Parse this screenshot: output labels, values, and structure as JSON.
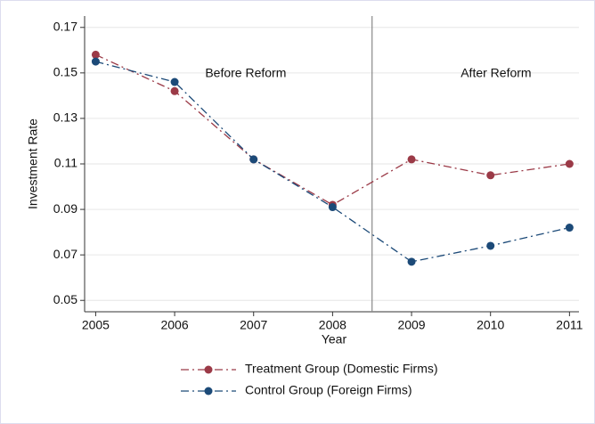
{
  "chart_data": {
    "type": "line",
    "x_label": "Year",
    "y_label": "Investment Rate",
    "x": [
      2005,
      2006,
      2007,
      2008,
      2009,
      2010,
      2011
    ],
    "series": [
      {
        "name": "Treatment Group (Domestic Firms)",
        "color": "#9b3a47",
        "values": [
          0.158,
          0.142,
          0.112,
          0.092,
          0.112,
          0.105,
          0.11
        ]
      },
      {
        "name": "Control Group (Foreign Firms)",
        "color": "#1c4a78",
        "values": [
          0.155,
          0.146,
          0.112,
          0.091,
          0.067,
          0.074,
          0.082
        ]
      }
    ],
    "xlim": [
      2004.86,
      2011.12
    ],
    "ylim": [
      0.045,
      0.175
    ],
    "xticks": [
      2005,
      2006,
      2007,
      2008,
      2009,
      2010,
      2011
    ],
    "yticks": [
      0.05,
      0.07,
      0.09,
      0.11,
      0.13,
      0.15,
      0.17
    ],
    "grid": true,
    "vline": 2008.5,
    "annotations": [
      {
        "text": "Before Reform",
        "x": 2006.9,
        "y": 0.1497
      },
      {
        "text": "After Reform",
        "x": 2010.07,
        "y": 0.1497
      }
    ]
  }
}
